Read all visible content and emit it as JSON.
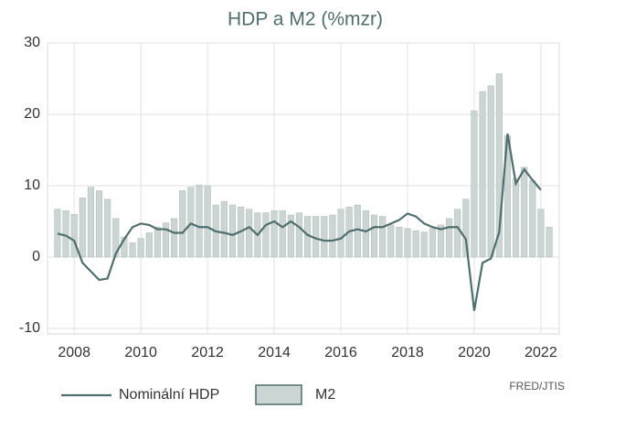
{
  "chart_data": {
    "type": "combo",
    "title": "HDP a M2 (%mzr)",
    "source": "FRED/JTIS",
    "x": [
      2007.5,
      2007.75,
      2008,
      2008.25,
      2008.5,
      2008.75,
      2009,
      2009.25,
      2009.5,
      2009.75,
      2010,
      2010.25,
      2010.5,
      2010.75,
      2011,
      2011.25,
      2011.5,
      2011.75,
      2012,
      2012.25,
      2012.5,
      2012.75,
      2013,
      2013.25,
      2013.5,
      2013.75,
      2014,
      2014.25,
      2014.5,
      2014.75,
      2015,
      2015.25,
      2015.5,
      2015.75,
      2016,
      2016.25,
      2016.5,
      2016.75,
      2017,
      2017.25,
      2017.5,
      2017.75,
      2018,
      2018.25,
      2018.5,
      2018.75,
      2019,
      2019.25,
      2019.5,
      2019.75,
      2020,
      2020.25,
      2020.5,
      2020.75,
      2021,
      2021.25,
      2021.5,
      2021.75,
      2022,
      2022.25
    ],
    "series": [
      {
        "name": "M2",
        "type": "bar",
        "color": "#cbd5d3",
        "values": [
          6.7,
          6.5,
          6.0,
          8.3,
          9.8,
          9.3,
          8.1,
          5.4,
          2.8,
          2.0,
          2.6,
          3.4,
          4.2,
          4.8,
          5.4,
          9.3,
          9.8,
          10.1,
          10.0,
          7.3,
          7.8,
          7.3,
          7.0,
          6.7,
          6.2,
          6.2,
          6.5,
          6.5,
          5.9,
          6.2,
          5.7,
          5.7,
          5.7,
          5.9,
          6.7,
          7.0,
          7.3,
          6.5,
          5.9,
          5.7,
          4.5,
          4.2,
          4.0,
          3.7,
          3.5,
          4.0,
          4.5,
          5.4,
          6.7,
          8.1,
          20.5,
          23.2,
          24.0,
          25.7,
          17.0,
          11.0,
          12.6,
          10.7,
          6.7,
          4.2
        ]
      },
      {
        "name": "Nominální HDP",
        "type": "line",
        "color": "#4f6e6e",
        "values": [
          3.3,
          3.0,
          2.3,
          -0.8,
          -2.0,
          -3.2,
          -3.0,
          0.5,
          2.5,
          4.2,
          4.7,
          4.5,
          3.9,
          3.9,
          3.4,
          3.4,
          4.7,
          4.2,
          4.2,
          3.6,
          3.4,
          3.1,
          3.6,
          4.2,
          3.1,
          4.5,
          5.0,
          4.2,
          5.0,
          4.2,
          3.1,
          2.6,
          2.3,
          2.3,
          2.6,
          3.6,
          3.9,
          3.6,
          4.2,
          4.2,
          4.7,
          5.2,
          6.1,
          5.7,
          4.7,
          4.2,
          3.9,
          4.2,
          4.2,
          2.5,
          -7.5,
          -0.8,
          -0.2,
          3.5,
          17.3,
          10.3,
          12.3,
          10.8,
          9.4,
          null
        ]
      }
    ],
    "xlim": [
      2007.2,
      2022.55
    ],
    "xticks": [
      2008,
      2010,
      2012,
      2014,
      2016,
      2018,
      2020,
      2022
    ],
    "ylim": [
      -10,
      30
    ],
    "yticks": [
      -10,
      0,
      10,
      20,
      30
    ],
    "grid": true
  }
}
